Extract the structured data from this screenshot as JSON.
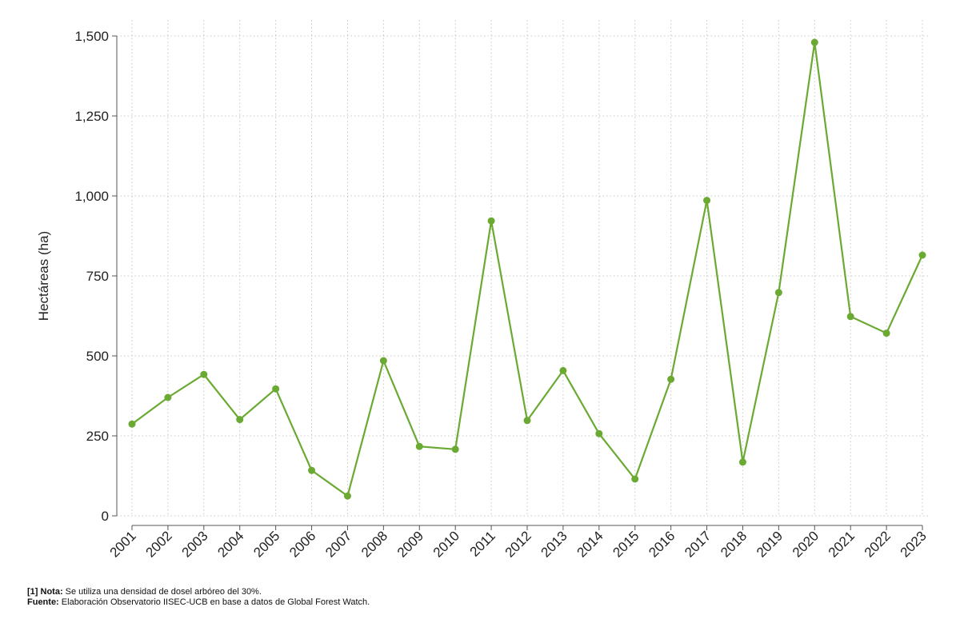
{
  "colors": {
    "line": "#6aaa32",
    "grid": "#c8c8c8",
    "axis": "#555555",
    "text": "#222222"
  },
  "chart_data": {
    "type": "line",
    "title": "",
    "xlabel": "",
    "ylabel": "Hectáreas (ha)",
    "categories": [
      "2001",
      "2002",
      "2003",
      "2004",
      "2005",
      "2006",
      "2007",
      "2008",
      "2009",
      "2010",
      "2011",
      "2012",
      "2013",
      "2014",
      "2015",
      "2016",
      "2017",
      "2018",
      "2019",
      "2020",
      "2021",
      "2022",
      "2023"
    ],
    "values": [
      287,
      370,
      442,
      301,
      397,
      142,
      62,
      485,
      217,
      208,
      922,
      298,
      454,
      257,
      115,
      427,
      986,
      168,
      698,
      1480,
      623,
      571,
      815
    ],
    "ylim": [
      0,
      1500
    ],
    "yticks": [
      0,
      250,
      500,
      750,
      1000,
      1250,
      1500
    ],
    "ytick_labels": [
      "0",
      "250",
      "500",
      "750",
      "1,000",
      "1,250",
      "1,500"
    ],
    "grid": true,
    "grid_style": "dotted"
  },
  "footnotes": {
    "note_label": "[1] Nota:",
    "note_text": " Se utiliza una densidad de dosel arbóreo del 30%.",
    "source_label": "Fuente:",
    "source_text": " Elaboración Observatorio IISEC-UCB en base a datos de Global Forest Watch."
  }
}
